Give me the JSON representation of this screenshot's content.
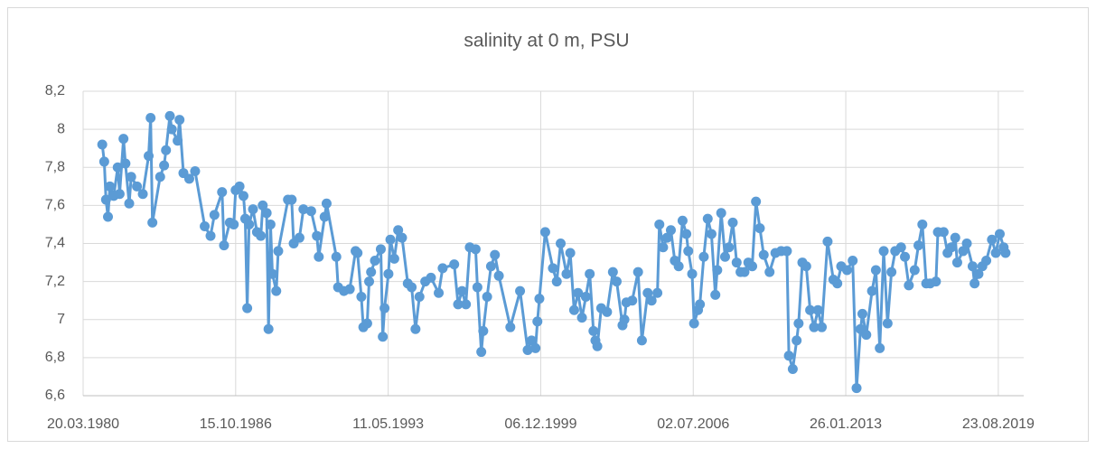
{
  "chart_data": {
    "type": "line",
    "title": "salinity at 0 m, PSU",
    "color": "#5b9bd5",
    "grid": true,
    "xlim": [
      "20.03.1980",
      "26.09.2020"
    ],
    "xticks": [
      "20.03.1980",
      "15.10.1986",
      "11.05.1993",
      "06.12.1999",
      "02.07.2006",
      "26.01.2013",
      "23.08.2019"
    ],
    "ylim": [
      6.6,
      8.2
    ],
    "yticks": [
      {
        "value": 6.6,
        "label": "6,6"
      },
      {
        "value": 6.8,
        "label": "6,8"
      },
      7,
      {
        "value": 7.2,
        "label": "7,2"
      },
      {
        "value": 7.4,
        "label": "7,4"
      },
      {
        "value": 7.6,
        "label": "7,6"
      },
      {
        "value": 7.8,
        "label": "7,8"
      },
      8,
      {
        "value": 8.2,
        "label": "8,2"
      }
    ],
    "x": [
      "15.01.1981",
      "15.02.1981",
      "15.03.1981",
      "15.04.1981",
      "15.05.1981",
      "15.07.1981",
      "15.09.1981",
      "15.10.1981",
      "15.12.1981",
      "15.01.1982",
      "15.03.1982",
      "15.04.1982",
      "15.07.1982",
      "15.10.1982",
      "15.01.1983",
      "15.02.1983",
      "15.03.1983",
      "15.07.1983",
      "15.09.1983",
      "15.10.1983",
      "15.12.1983",
      "15.01.1984",
      "15.04.1984",
      "15.05.1984",
      "15.07.1984",
      "15.10.1984",
      "15.01.1985",
      "15.06.1985",
      "15.09.1985",
      "15.11.1985",
      "15.03.1986",
      "15.04.1986",
      "15.07.1986",
      "15.09.1986",
      "15.10.1986",
      "15.12.1986",
      "15.02.1987",
      "15.03.1987",
      "15.04.1987",
      "15.05.1987",
      "15.07.1987",
      "15.09.1987",
      "15.11.1987",
      "15.12.1987",
      "15.02.1988",
      "15.03.1988",
      "15.04.1988",
      "15.05.1988",
      "15.07.1988",
      "15.08.1988",
      "15.01.1989",
      "15.03.1989",
      "15.04.1989",
      "15.07.1989",
      "15.09.1989",
      "15.01.1990",
      "15.04.1990",
      "15.05.1990",
      "15.08.1990",
      "15.09.1990",
      "15.02.1991",
      "15.03.1991",
      "15.06.1991",
      "15.09.1991",
      "15.12.1991",
      "15.01.1992",
      "15.03.1992",
      "15.04.1992",
      "15.06.1992",
      "15.07.1992",
      "15.08.1992",
      "15.10.1992",
      "15.01.1993",
      "15.02.1993",
      "15.03.1993",
      "15.05.1993",
      "15.06.1993",
      "15.08.1993",
      "15.10.1993",
      "15.12.1993",
      "15.03.1994",
      "15.05.1994",
      "15.07.1994",
      "15.09.1994",
      "15.12.1994",
      "15.03.1995",
      "15.07.1995",
      "15.09.1995",
      "15.03.1996",
      "15.05.1996",
      "15.07.1996",
      "15.09.1996",
      "15.11.1996",
      "15.02.1997",
      "15.03.1997",
      "15.05.1997",
      "15.06.1997",
      "15.08.1997",
      "15.10.1997",
      "15.12.1997",
      "15.02.1998",
      "15.08.1998",
      "15.01.1999",
      "15.05.1999",
      "15.07.1999",
      "15.09.1999",
      "15.10.1999",
      "15.11.1999",
      "15.02.2000",
      "15.06.2000",
      "15.08.2000",
      "15.10.2000",
      "15.01.2001",
      "15.03.2001",
      "15.05.2001",
      "15.07.2001",
      "15.09.2001",
      "15.11.2001",
      "15.01.2002",
      "15.03.2002",
      "15.04.2002",
      "15.05.2002",
      "15.07.2002",
      "15.10.2002",
      "15.01.2003",
      "15.03.2003",
      "15.06.2003",
      "15.07.2003",
      "15.08.2003",
      "15.11.2003",
      "15.02.2004",
      "15.04.2004",
      "15.07.2004",
      "15.09.2004",
      "15.12.2004",
      "15.01.2005",
      "15.03.2005",
      "15.05.2005",
      "15.07.2005",
      "15.09.2005",
      "15.11.2005",
      "15.01.2006",
      "15.03.2006",
      "15.04.2006",
      "15.06.2006",
      "15.07.2006",
      "15.09.2006",
      "15.10.2006",
      "15.12.2006",
      "15.02.2007",
      "15.04.2007",
      "15.06.2007",
      "15.07.2007",
      "15.09.2007",
      "15.11.2007",
      "15.01.2008",
      "15.03.2008",
      "15.05.2008",
      "15.07.2008",
      "15.09.2008",
      "15.11.2008",
      "15.01.2009",
      "15.03.2009",
      "15.05.2009",
      "15.07.2009",
      "15.10.2009",
      "15.01.2010",
      "15.04.2010",
      "15.07.2010",
      "15.08.2010",
      "15.10.2010",
      "15.12.2010",
      "15.01.2011",
      "15.03.2011",
      "15.05.2011",
      "15.07.2011",
      "15.09.2011",
      "15.11.2011",
      "15.01.2012",
      "15.04.2012",
      "15.07.2012",
      "15.09.2012",
      "15.11.2012",
      "15.02.2013",
      "15.05.2013",
      "15.07.2013",
      "15.09.2013",
      "15.10.2013",
      "15.12.2013",
      "15.03.2014",
      "15.05.2014",
      "15.07.2014",
      "15.09.2014",
      "15.11.2014",
      "15.01.2015",
      "15.03.2015",
      "15.06.2015",
      "15.08.2015",
      "15.10.2015",
      "15.01.2016",
      "15.03.2016",
      "15.05.2016",
      "15.07.2016",
      "15.09.2016",
      "15.12.2016",
      "15.01.2017",
      "15.04.2017",
      "15.06.2017",
      "15.08.2017",
      "15.10.2017",
      "15.11.2017",
      "15.02.2018",
      "15.04.2018",
      "15.07.2018",
      "15.08.2018",
      "15.10.2018",
      "15.12.2018",
      "15.02.2019",
      "15.05.2019",
      "15.07.2019",
      "15.09.2019",
      "15.11.2019",
      "15.12.2019"
    ],
    "values": [
      7.92,
      7.83,
      7.63,
      7.54,
      7.7,
      7.65,
      7.8,
      7.66,
      7.95,
      7.82,
      7.61,
      7.75,
      7.7,
      7.66,
      7.86,
      8.06,
      7.51,
      7.75,
      7.81,
      7.89,
      8.07,
      8.0,
      7.94,
      8.05,
      7.77,
      7.74,
      7.78,
      7.49,
      7.44,
      7.55,
      7.67,
      7.39,
      7.51,
      7.5,
      7.68,
      7.7,
      7.65,
      7.53,
      7.06,
      7.5,
      7.58,
      7.46,
      7.44,
      7.6,
      7.56,
      6.95,
      7.5,
      7.24,
      7.15,
      7.36,
      7.63,
      7.63,
      7.4,
      7.43,
      7.58,
      7.57,
      7.44,
      7.33,
      7.54,
      7.61,
      7.33,
      7.17,
      7.15,
      7.16,
      7.36,
      7.35,
      7.12,
      6.96,
      6.98,
      7.2,
      7.25,
      7.31,
      7.37,
      6.91,
      7.06,
      7.24,
      7.42,
      7.32,
      7.47,
      7.43,
      7.19,
      7.17,
      6.95,
      7.12,
      7.2,
      7.22,
      7.14,
      7.27,
      7.29,
      7.08,
      7.15,
      7.08,
      7.38,
      7.37,
      7.17,
      6.83,
      6.94,
      7.12,
      7.28,
      7.34,
      7.23,
      6.96,
      7.15,
      6.84,
      6.89,
      6.85,
      6.99,
      7.11,
      7.46,
      7.27,
      7.2,
      7.4,
      7.24,
      7.35,
      7.05,
      7.14,
      7.01,
      7.12,
      7.24,
      6.94,
      6.89,
      6.86,
      7.06,
      7.04,
      7.25,
      7.2,
      6.97,
      7.0,
      7.09,
      7.1,
      7.25,
      6.89,
      7.14,
      7.1,
      7.14,
      7.5,
      7.38,
      7.43,
      7.47,
      7.31,
      7.28,
      7.52,
      7.45,
      7.36,
      7.24,
      6.98,
      7.05,
      7.08,
      7.33,
      7.53,
      7.45,
      7.13,
      7.26,
      7.56,
      7.33,
      7.38,
      7.51,
      7.3,
      7.25,
      7.25,
      7.3,
      7.28,
      7.62,
      7.48,
      7.34,
      7.25,
      7.35,
      7.36,
      7.36,
      6.81,
      6.74,
      6.89,
      6.98,
      7.3,
      7.28,
      7.05,
      6.96,
      7.05,
      6.96,
      7.41,
      7.21,
      7.19,
      7.28,
      7.26,
      7.31,
      6.64,
      6.95,
      7.03,
      6.92,
      7.15,
      7.26,
      6.85,
      7.36,
      6.98,
      7.25,
      7.36,
      7.38,
      7.33,
      7.18,
      7.26,
      7.39,
      7.5,
      7.19,
      7.19,
      7.2,
      7.46,
      7.46,
      7.35,
      7.38,
      7.43,
      7.3,
      7.36,
      7.4,
      7.28,
      7.19,
      7.24,
      7.28,
      7.31,
      7.42,
      7.35,
      7.45,
      7.38,
      7.35
    ]
  }
}
